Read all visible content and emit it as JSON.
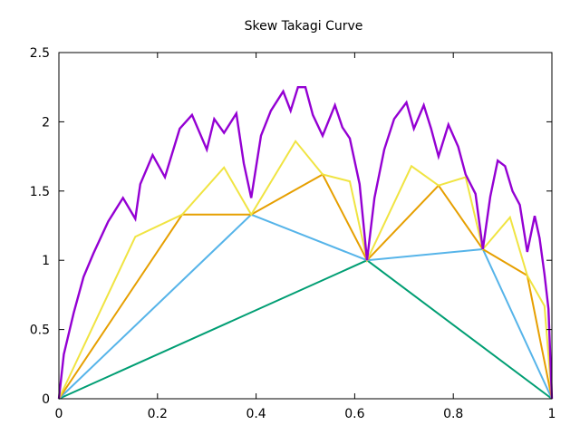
{
  "chart_data": {
    "type": "line",
    "title": "Skew Takagi Curve",
    "xlabel": "",
    "ylabel": "",
    "xlim": [
      0,
      1
    ],
    "ylim": [
      0,
      2.5
    ],
    "x_ticks": [
      0,
      0.2,
      0.4,
      0.6,
      0.8,
      1
    ],
    "x_tick_labels": [
      "0",
      "0.2",
      "0.4",
      "0.6",
      "0.8",
      "1"
    ],
    "y_ticks": [
      0,
      0.5,
      1,
      1.5,
      2,
      2.5
    ],
    "y_tick_labels": [
      "0",
      "0.5",
      "1",
      "1.5",
      "2",
      "2.5"
    ],
    "grid": false,
    "legend": "none",
    "series": [
      {
        "color": "#009e73",
        "x": [
          0,
          0.625,
          1
        ],
        "y": [
          0,
          1.0,
          0
        ]
      },
      {
        "color": "#56b4e9",
        "x": [
          0,
          0.39,
          0.625,
          0.86,
          1
        ],
        "y": [
          0,
          1.33,
          1.0,
          1.08,
          0
        ]
      },
      {
        "color": "#e69f00",
        "x": [
          0,
          0.25,
          0.39,
          0.535,
          0.625,
          0.77,
          0.86,
          0.95,
          1
        ],
        "y": [
          0,
          1.33,
          1.33,
          1.62,
          1.0,
          1.54,
          1.08,
          0.89,
          0
        ]
      },
      {
        "color": "#f0e442",
        "x": [
          0,
          0.155,
          0.25,
          0.335,
          0.39,
          0.48,
          0.535,
          0.59,
          0.625,
          0.715,
          0.77,
          0.825,
          0.86,
          0.915,
          0.95,
          0.985,
          1
        ],
        "y": [
          0,
          1.17,
          1.33,
          1.67,
          1.33,
          1.86,
          1.62,
          1.57,
          1.0,
          1.68,
          1.54,
          1.6,
          1.08,
          1.31,
          0.89,
          0.67,
          0
        ]
      },
      {
        "color": "#9400d3",
        "x": [
          0,
          0.01,
          0.03,
          0.05,
          0.07,
          0.1,
          0.13,
          0.155,
          0.165,
          0.19,
          0.215,
          0.245,
          0.27,
          0.3,
          0.315,
          0.335,
          0.36,
          0.375,
          0.39,
          0.41,
          0.43,
          0.455,
          0.47,
          0.485,
          0.5,
          0.515,
          0.535,
          0.56,
          0.575,
          0.59,
          0.61,
          0.625,
          0.64,
          0.66,
          0.68,
          0.705,
          0.72,
          0.74,
          0.755,
          0.77,
          0.79,
          0.81,
          0.825,
          0.845,
          0.86,
          0.875,
          0.89,
          0.905,
          0.92,
          0.935,
          0.95,
          0.965,
          0.975,
          0.985,
          0.993,
          1
        ],
        "y": [
          0,
          0.32,
          0.62,
          0.88,
          1.05,
          1.28,
          1.45,
          1.3,
          1.55,
          1.76,
          1.6,
          1.95,
          2.05,
          1.8,
          2.02,
          1.92,
          2.06,
          1.7,
          1.45,
          1.9,
          2.08,
          2.22,
          2.08,
          2.25,
          2.25,
          2.05,
          1.9,
          2.12,
          1.96,
          1.88,
          1.55,
          1.0,
          1.45,
          1.8,
          2.02,
          2.14,
          1.95,
          2.12,
          1.95,
          1.75,
          1.98,
          1.82,
          1.62,
          1.48,
          1.08,
          1.46,
          1.72,
          1.68,
          1.5,
          1.4,
          1.06,
          1.32,
          1.16,
          0.9,
          0.65,
          0.0
        ]
      }
    ]
  }
}
